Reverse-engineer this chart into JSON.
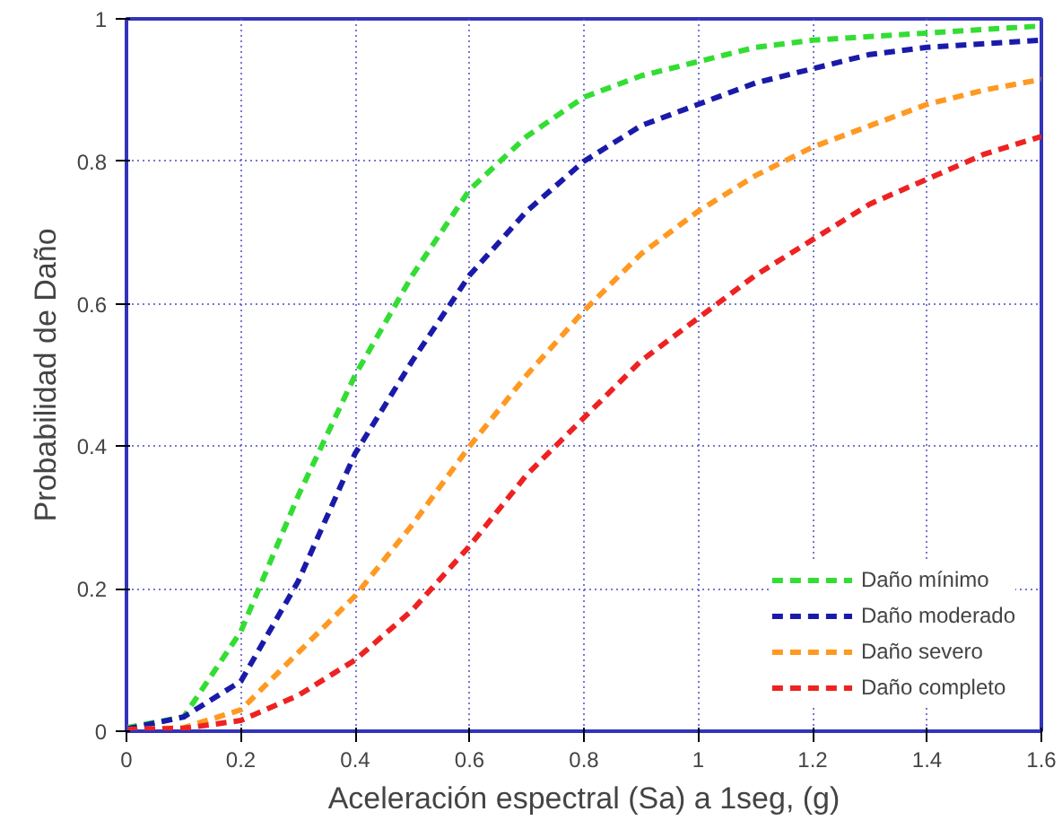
{
  "chart_data": {
    "type": "line",
    "xlabel": "Aceleración espectral (Sa) a 1seg, (g)",
    "ylabel": "Probabilidad de Daño",
    "x": [
      0,
      0.1,
      0.2,
      0.3,
      0.4,
      0.5,
      0.6,
      0.7,
      0.8,
      0.9,
      1.0,
      1.1,
      1.2,
      1.3,
      1.4,
      1.5,
      1.6
    ],
    "series": [
      {
        "name": "Daño mínimo",
        "color": "#33dd33",
        "values": [
          0.005,
          0.02,
          0.14,
          0.33,
          0.5,
          0.64,
          0.76,
          0.835,
          0.89,
          0.92,
          0.94,
          0.96,
          0.97,
          0.975,
          0.98,
          0.985,
          0.99
        ]
      },
      {
        "name": "Daño moderado",
        "color": "#1a1aaa",
        "values": [
          0.003,
          0.02,
          0.07,
          0.21,
          0.39,
          0.52,
          0.64,
          0.73,
          0.8,
          0.85,
          0.88,
          0.91,
          0.93,
          0.95,
          0.96,
          0.965,
          0.97
        ]
      },
      {
        "name": "Daño severo",
        "color": "#ff9922",
        "values": [
          0.002,
          0.005,
          0.03,
          0.11,
          0.19,
          0.29,
          0.4,
          0.5,
          0.59,
          0.67,
          0.73,
          0.78,
          0.82,
          0.85,
          0.88,
          0.9,
          0.915
        ]
      },
      {
        "name": "Daño completo",
        "color": "#ee2222",
        "values": [
          0.002,
          0.004,
          0.015,
          0.05,
          0.1,
          0.17,
          0.26,
          0.36,
          0.44,
          0.52,
          0.58,
          0.64,
          0.69,
          0.74,
          0.775,
          0.81,
          0.835
        ]
      }
    ],
    "xlim": [
      0,
      1.6
    ],
    "ylim": [
      0,
      1
    ],
    "xticks": [
      0,
      0.2,
      0.4,
      0.6,
      0.8,
      1,
      1.2,
      1.4,
      1.6
    ],
    "yticks": [
      0,
      0.2,
      0.4,
      0.6,
      0.8,
      1
    ],
    "grid": true,
    "legend": "bottom right",
    "line_style": "dashed",
    "marker": "none"
  }
}
